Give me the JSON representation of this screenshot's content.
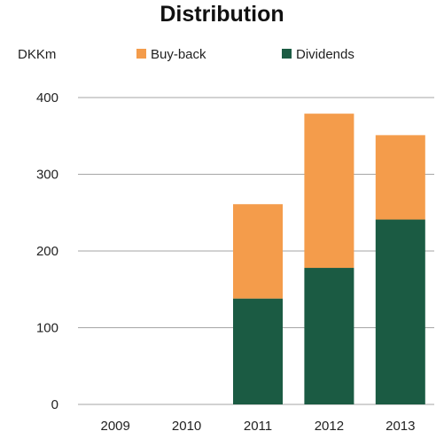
{
  "chart_data": {
    "type": "bar",
    "stacked": true,
    "title": "Distribution",
    "unit_label": "DKKm",
    "categories": [
      "2009",
      "2010",
      "2011",
      "2012",
      "2013"
    ],
    "series": [
      {
        "name": "Dividends",
        "color": "#1b5b43",
        "values": [
          0,
          0,
          138,
          178,
          241
        ]
      },
      {
        "name": "Buy-back",
        "color": "#f49c4b",
        "values": [
          0,
          0,
          123,
          201,
          110
        ]
      }
    ],
    "yticks": [
      0,
      100,
      200,
      300,
      400
    ],
    "ylim": [
      0,
      400
    ],
    "grid": true,
    "legend_position": "top"
  }
}
